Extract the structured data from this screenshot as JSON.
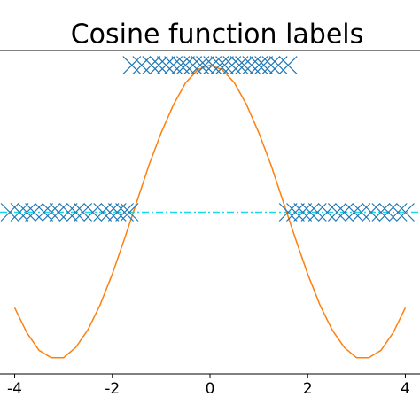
{
  "chart_data": {
    "type": "scatter-line",
    "title": "Cosine function labels",
    "xlim": [
      -4.3,
      4.3
    ],
    "ylim": [
      -1.1,
      1.1
    ],
    "xticks": [
      -4,
      -2,
      0,
      2,
      4
    ],
    "axhline": 0,
    "axhline_color": "#17d8e8",
    "line": {
      "color": "#ff7f0e",
      "x": [
        -4,
        -3.75,
        -3.5,
        -3.25,
        -3,
        -2.75,
        -2.5,
        -2.25,
        -2,
        -1.75,
        -1.5,
        -1.25,
        -1,
        -0.75,
        -0.5,
        -0.25,
        0,
        0.25,
        0.5,
        0.75,
        1,
        1.25,
        1.5,
        1.75,
        2,
        2.25,
        2.5,
        2.75,
        3,
        3.25,
        3.5,
        3.75,
        4
      ],
      "values": [
        -0.65,
        -0.82,
        -0.94,
        -0.99,
        -0.99,
        -0.92,
        -0.8,
        -0.63,
        -0.42,
        -0.18,
        0.07,
        0.32,
        0.54,
        0.73,
        0.88,
        0.97,
        1,
        0.97,
        0.88,
        0.73,
        0.54,
        0.32,
        0.07,
        -0.18,
        -0.42,
        -0.63,
        -0.8,
        -0.92,
        -0.99,
        -0.99,
        -0.94,
        -0.82,
        -0.65
      ]
    },
    "scatter": {
      "color": "#1f77b4",
      "x": [
        -1.6,
        -1.4,
        -1.2,
        -1.05,
        -0.9,
        -0.75,
        -0.6,
        -0.5,
        -0.35,
        -0.2,
        -0.1,
        0.05,
        0.2,
        0.3,
        0.45,
        0.6,
        0.7,
        0.85,
        1.0,
        1.1,
        1.25,
        1.4,
        1.6,
        -4.1,
        -3.9,
        -3.75,
        -3.6,
        -3.4,
        -3.25,
        -3.1,
        -2.9,
        -2.75,
        -2.6,
        -2.4,
        -2.2,
        -2.05,
        -1.9,
        -1.75,
        -1.65,
        1.6,
        1.75,
        1.9,
        2.05,
        2.2,
        2.4,
        2.6,
        2.75,
        2.95,
        3.1,
        3.3,
        3.5,
        3.65,
        3.85,
        4.0
      ],
      "values": [
        1,
        1,
        1,
        1,
        1,
        1,
        1,
        1,
        1,
        1,
        1,
        1,
        1,
        1,
        1,
        1,
        1,
        1,
        1,
        1,
        1,
        1,
        1,
        0,
        0,
        0,
        0,
        0,
        0,
        0,
        0,
        0,
        0,
        0,
        0,
        0,
        0,
        0,
        0,
        0,
        0,
        0,
        0,
        0,
        0,
        0,
        0,
        0,
        0,
        0,
        0,
        0,
        0,
        0
      ]
    }
  }
}
